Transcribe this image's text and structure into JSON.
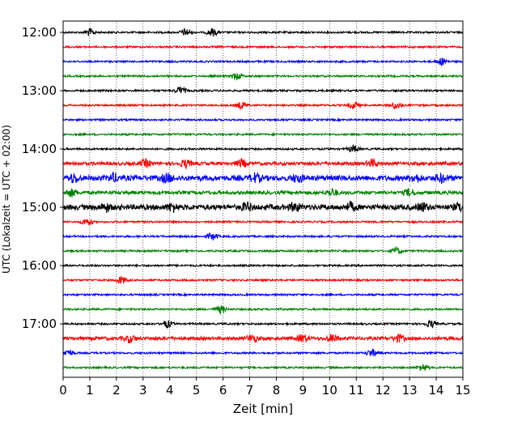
{
  "chart_data": {
    "type": "line",
    "title": "",
    "xlabel": "Zeit  [min]",
    "ylabel": "UTC (Lokalzeit = UTC + 02:00)",
    "xlim": [
      0,
      15
    ],
    "x_ticks": [
      "0",
      "1",
      "2",
      "3",
      "4",
      "5",
      "6",
      "7",
      "8",
      "9",
      "10",
      "11",
      "12",
      "13",
      "14",
      "15"
    ],
    "y_tick_labels": [
      "12:00",
      "13:00",
      "14:00",
      "15:00",
      "16:00",
      "17:00"
    ],
    "grid": "vertical dotted lines at each minute",
    "trace_interval_minutes": 15,
    "trace_colors_cycle": [
      "#000000",
      "#ff0000",
      "#0000ff",
      "#008000"
    ],
    "traces": [
      {
        "start_utc": "12:00",
        "color": "#000000",
        "noise": "low",
        "bursts_min": [
          1.0,
          4.6,
          5.6
        ]
      },
      {
        "start_utc": "12:15",
        "color": "#ff0000",
        "noise": "low",
        "bursts_min": []
      },
      {
        "start_utc": "12:30",
        "color": "#0000ff",
        "noise": "low",
        "bursts_min": [
          14.2
        ]
      },
      {
        "start_utc": "12:45",
        "color": "#008000",
        "noise": "low",
        "bursts_min": [
          6.5
        ]
      },
      {
        "start_utc": "13:00",
        "color": "#000000",
        "noise": "low",
        "bursts_min": [
          4.4
        ]
      },
      {
        "start_utc": "13:15",
        "color": "#ff0000",
        "noise": "low",
        "bursts_min": [
          6.7,
          10.9,
          12.5
        ]
      },
      {
        "start_utc": "13:30",
        "color": "#0000ff",
        "noise": "low",
        "bursts_min": []
      },
      {
        "start_utc": "13:45",
        "color": "#008000",
        "noise": "low",
        "bursts_min": []
      },
      {
        "start_utc": "14:00",
        "color": "#000000",
        "noise": "low",
        "bursts_min": [
          10.9
        ]
      },
      {
        "start_utc": "14:15",
        "color": "#ff0000",
        "noise": "medium",
        "bursts_min": [
          3.1,
          4.6,
          6.7,
          11.6
        ]
      },
      {
        "start_utc": "14:30",
        "color": "#0000ff",
        "noise": "high",
        "bursts_min": [
          0.4,
          1.9,
          3.9,
          7.2,
          8.8,
          13.2,
          14.2
        ]
      },
      {
        "start_utc": "14:45",
        "color": "#008000",
        "noise": "medium",
        "bursts_min": [
          0.3,
          10.1,
          13.0
        ]
      },
      {
        "start_utc": "15:00",
        "color": "#000000",
        "noise": "high",
        "bursts_min": [
          1.6,
          4.1,
          6.9,
          8.7,
          10.8,
          13.5,
          14.9
        ]
      },
      {
        "start_utc": "15:15",
        "color": "#ff0000",
        "noise": "low",
        "bursts_min": [
          0.9
        ]
      },
      {
        "start_utc": "15:30",
        "color": "#0000ff",
        "noise": "low",
        "bursts_min": [
          5.6
        ]
      },
      {
        "start_utc": "15:45",
        "color": "#008000",
        "noise": "low",
        "bursts_min": [
          12.5
        ]
      },
      {
        "start_utc": "16:00",
        "color": "#000000",
        "noise": "low",
        "bursts_min": []
      },
      {
        "start_utc": "16:15",
        "color": "#ff0000",
        "noise": "low",
        "bursts_min": [
          2.2
        ]
      },
      {
        "start_utc": "16:30",
        "color": "#0000ff",
        "noise": "low",
        "bursts_min": []
      },
      {
        "start_utc": "16:45",
        "color": "#008000",
        "noise": "low",
        "bursts_min": [
          5.9
        ]
      },
      {
        "start_utc": "17:00",
        "color": "#000000",
        "noise": "low",
        "bursts_min": [
          3.9,
          13.8
        ]
      },
      {
        "start_utc": "17:15",
        "color": "#ff0000",
        "noise": "medium",
        "bursts_min": [
          2.5,
          7.1,
          9.0,
          10.1,
          12.6
        ]
      },
      {
        "start_utc": "17:30",
        "color": "#0000ff",
        "noise": "low",
        "bursts_min": [
          0.2,
          11.6
        ]
      },
      {
        "start_utc": "17:45",
        "color": "#008000",
        "noise": "low",
        "bursts_min": [
          13.5
        ]
      }
    ]
  }
}
